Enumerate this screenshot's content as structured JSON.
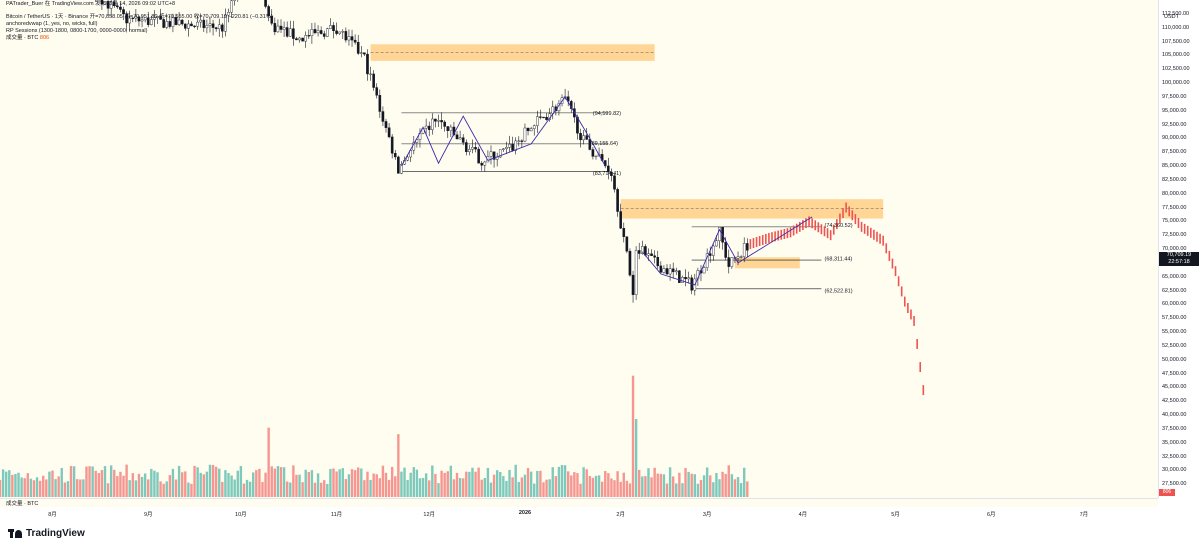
{
  "header": {
    "title_line": "PATrader_Buer 在 TradingView.com 发布, 3月 14, 2026 09:02 UTC+8",
    "symbol_line": "Bitcoin / TetherUS · 1天 · Binance  开=70,858.05  高=70,951.80  低=70,555.00  收=70,709.19  −220.81 (−0.31%)",
    "indicator_line_1": "anchoredvwap (1, yes, no, wicks, full)",
    "indicator_line_2": "RP Sessions (1300-1800, 0800-1700, 0000-0000, normal)",
    "volume_line": "成交量 · BTC",
    "volume_value": "806"
  },
  "volume_pane_label": "成交量 · BTC",
  "price_axis": {
    "unit": "USDT",
    "ticks": [
      "112,500.00",
      "110,000.00",
      "107,500.00",
      "105,000.00",
      "102,500.00",
      "100,000.00",
      "97,500.00",
      "95,000.00",
      "92,500.00",
      "90,000.00",
      "87,500.00",
      "85,000.00",
      "82,500.00",
      "80,000.00",
      "77,500.00",
      "75,000.00",
      "72,500.00",
      "70,000.00",
      "67,500.00",
      "65,000.00",
      "62,500.00",
      "60,000.00",
      "57,500.00",
      "55,000.00",
      "52,500.00",
      "50,000.00",
      "47,500.00",
      "45,000.00",
      "42,500.00",
      "40,000.00",
      "37,500.00",
      "35,000.00",
      "32,500.00",
      "30,000.00",
      "27,500.00"
    ],
    "current_price": "70,709.19",
    "countdown": "22:57:18",
    "volume_badge": "806"
  },
  "time_axis": {
    "ticks": [
      {
        "label": "8月",
        "bold": false
      },
      {
        "label": "9月",
        "bold": false
      },
      {
        "label": "10月",
        "bold": false
      },
      {
        "label": "11月",
        "bold": false
      },
      {
        "label": "12月",
        "bold": false
      },
      {
        "label": "2026",
        "bold": true
      },
      {
        "label": "2月",
        "bold": false
      },
      {
        "label": "3月",
        "bold": false
      },
      {
        "label": "4月",
        "bold": false
      },
      {
        "label": "5月",
        "bold": false
      },
      {
        "label": "6月",
        "bold": false
      },
      {
        "label": "7月",
        "bold": false
      }
    ]
  },
  "footer": {
    "brand": "TradingView"
  },
  "colors": {
    "up": "#26a69a",
    "down": "#ef5350",
    "zone": "#ffb74d",
    "pattern": "#3f2aa8",
    "bg": "#fffcf0",
    "line": "#131722"
  },
  "chart_data": {
    "type": "candlestick",
    "title": "Bitcoin / TetherUS · 1天 · Binance",
    "xlabel": "",
    "ylabel": "USDT",
    "ylim": [
      25000,
      115000
    ],
    "x_range": [
      "2025-07-15",
      "2026-07-25"
    ],
    "current": {
      "open": 70858.05,
      "high": 70951.8,
      "low": 70555.0,
      "close": 70709.19,
      "change": -220.81,
      "change_pct": -0.31
    },
    "price_path": [
      [
        "2025-07-15",
        117000
      ],
      [
        "2025-08-10",
        118500
      ],
      [
        "2025-08-25",
        111500
      ],
      [
        "2025-09-05",
        111000
      ],
      [
        "2025-09-25",
        110000
      ],
      [
        "2025-10-05",
        123500
      ],
      [
        "2025-10-11",
        110500
      ],
      [
        "2025-10-20",
        108000
      ],
      [
        "2025-11-01",
        110000
      ],
      [
        "2025-11-10",
        104500
      ],
      [
        "2025-11-21",
        84500
      ],
      [
        "2025-11-25",
        88000
      ],
      [
        "2025-12-03",
        93500
      ],
      [
        "2025-12-18",
        86000
      ],
      [
        "2025-12-27",
        88000
      ],
      [
        "2026-01-05",
        93000
      ],
      [
        "2026-01-14",
        97000
      ],
      [
        "2026-01-20",
        89500
      ],
      [
        "2026-01-29",
        84000
      ],
      [
        "2026-02-05",
        62500
      ],
      [
        "2026-02-06",
        70500
      ],
      [
        "2026-02-12",
        67500
      ],
      [
        "2026-02-24",
        63500
      ],
      [
        "2026-03-05",
        73000
      ],
      [
        "2026-03-08",
        67000
      ],
      [
        "2026-03-14",
        70709
      ]
    ],
    "projection_path": [
      [
        "2026-03-14",
        70709
      ],
      [
        "2026-03-21",
        72000
      ],
      [
        "2026-03-28",
        73000
      ],
      [
        "2026-04-03",
        75000
      ],
      [
        "2026-04-10",
        72500
      ],
      [
        "2026-04-15",
        77500
      ],
      [
        "2026-04-20",
        74000
      ],
      [
        "2026-04-27",
        71500
      ],
      [
        "2026-05-01",
        66000
      ],
      [
        "2026-05-04",
        60500
      ],
      [
        "2026-05-07",
        57000
      ],
      [
        "2026-05-10",
        44500
      ]
    ],
    "volume_range": [
      0,
      60000
    ],
    "volume_spikes": [
      {
        "date": "2025-10-10",
        "value": 32000
      },
      {
        "date": "2025-11-21",
        "value": 29000
      },
      {
        "date": "2026-02-05",
        "value": 56000
      },
      {
        "date": "2026-02-06",
        "value": 36000
      }
    ],
    "zones": [
      {
        "from": "2025-11-12",
        "to": "2026-02-12",
        "low": 104000,
        "high": 107000,
        "mid": 105500
      },
      {
        "from": "2026-02-01",
        "to": "2026-04-27",
        "low": 75500,
        "high": 79000,
        "mid": 77300
      },
      {
        "from": "2026-03-10",
        "to": "2026-03-31",
        "low": 66500,
        "high": 68500
      }
    ],
    "levels": [
      {
        "from": "2025-11-22",
        "to": "2026-01-28",
        "price": 94600
      },
      {
        "from": "2025-11-22",
        "to": "2026-01-28",
        "price": 89000
      },
      {
        "from": "2025-11-22",
        "to": "2026-01-28",
        "price": 84000
      },
      {
        "from": "2026-02-24",
        "to": "2026-04-07",
        "price": 74000
      },
      {
        "from": "2026-02-24",
        "to": "2026-04-07",
        "price": 68000
      },
      {
        "from": "2026-02-24",
        "to": "2026-04-07",
        "price": 62800
      }
    ],
    "pattern": [
      [
        "2025-11-22",
        85000
      ],
      [
        "2025-11-29",
        92000
      ],
      [
        "2025-12-04",
        85500
      ],
      [
        "2025-12-12",
        94000
      ],
      [
        "2025-12-20",
        86000
      ],
      [
        "2026-01-03",
        89000
      ],
      [
        "2026-01-14",
        97500
      ],
      [
        "2026-01-22",
        90000
      ],
      [
        "2026-01-27",
        85000
      ]
    ],
    "pattern_2": [
      [
        "2026-02-08",
        69500
      ],
      [
        "2026-02-14",
        65500
      ],
      [
        "2026-02-25",
        63500
      ],
      [
        "2026-03-05",
        73500
      ],
      [
        "2026-03-11",
        67500
      ],
      [
        "2026-04-04",
        75800
      ]
    ],
    "annotations": [
      {
        "date": "2026-01-23",
        "price": 94599.82,
        "text": "(94,599.82)"
      },
      {
        "date": "2026-01-22",
        "price": 89155.64,
        "text": "(89,155.64)"
      },
      {
        "date": "2026-01-23",
        "price": 83714.41,
        "text": "(83,714.41)"
      },
      {
        "date": "2026-04-08",
        "price": 74360.52,
        "text": "(74,360.52)"
      },
      {
        "date": "2026-04-08",
        "price": 68311.44,
        "text": "(68,311.44)"
      },
      {
        "date": "2026-04-08",
        "price": 62522.81,
        "text": "(62,522.81)"
      }
    ]
  }
}
